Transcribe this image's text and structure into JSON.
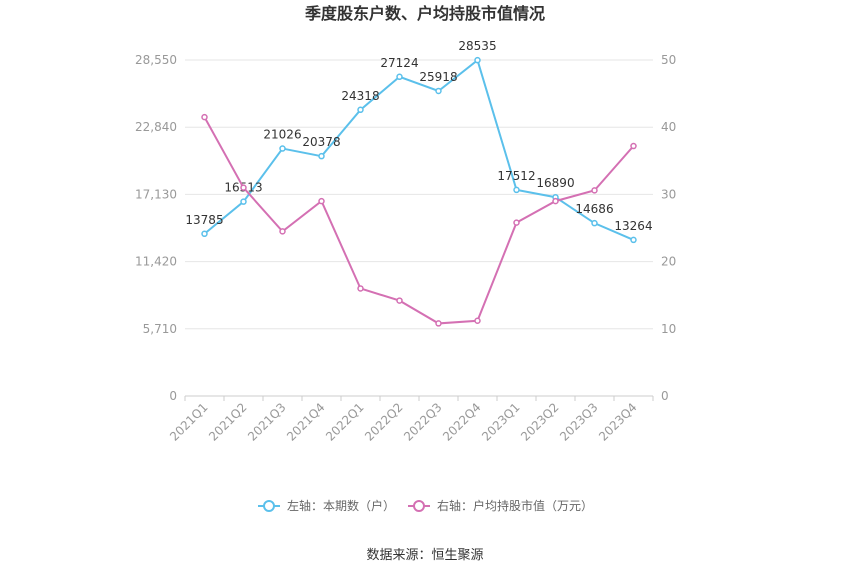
{
  "chart_data": {
    "type": "line",
    "title": "季度股东户数、户均持股市值情况",
    "categories": [
      "2021Q1",
      "2021Q2",
      "2021Q3",
      "2021Q4",
      "2022Q1",
      "2022Q2",
      "2022Q3",
      "2022Q4",
      "2023Q1",
      "2023Q2",
      "2023Q3",
      "2023Q4"
    ],
    "left_axis": {
      "ticks": [
        "0",
        "5,710",
        "11,420",
        "17,130",
        "22,840",
        "28,550"
      ],
      "min": 0,
      "max": 28550
    },
    "right_axis": {
      "ticks": [
        "0",
        "10",
        "20",
        "30",
        "40",
        "50"
      ],
      "min": 0,
      "max": 50
    },
    "series": [
      {
        "name": "左轴：本期数（户）",
        "axis": "left",
        "color": "#5bc0eb",
        "values": [
          13785,
          16513,
          21026,
          20378,
          24318,
          27124,
          25918,
          28535,
          17512,
          16890,
          14686,
          13264
        ],
        "labels": [
          "13785",
          "16513",
          "21026",
          "20378",
          "24318",
          "27124",
          "25918",
          "28535",
          "17512",
          "16890",
          "14686",
          "13264"
        ]
      },
      {
        "name": "右轴：户均持股市值（万元）",
        "axis": "right",
        "color": "#d470b3",
        "values": [
          41.5,
          31.0,
          24.5,
          29.0,
          16.0,
          14.2,
          10.8,
          11.2,
          25.8,
          29.0,
          30.6,
          37.2
        ]
      }
    ],
    "grid": true,
    "legend_position": "bottom"
  },
  "source_text": "数据来源：恒生聚源"
}
